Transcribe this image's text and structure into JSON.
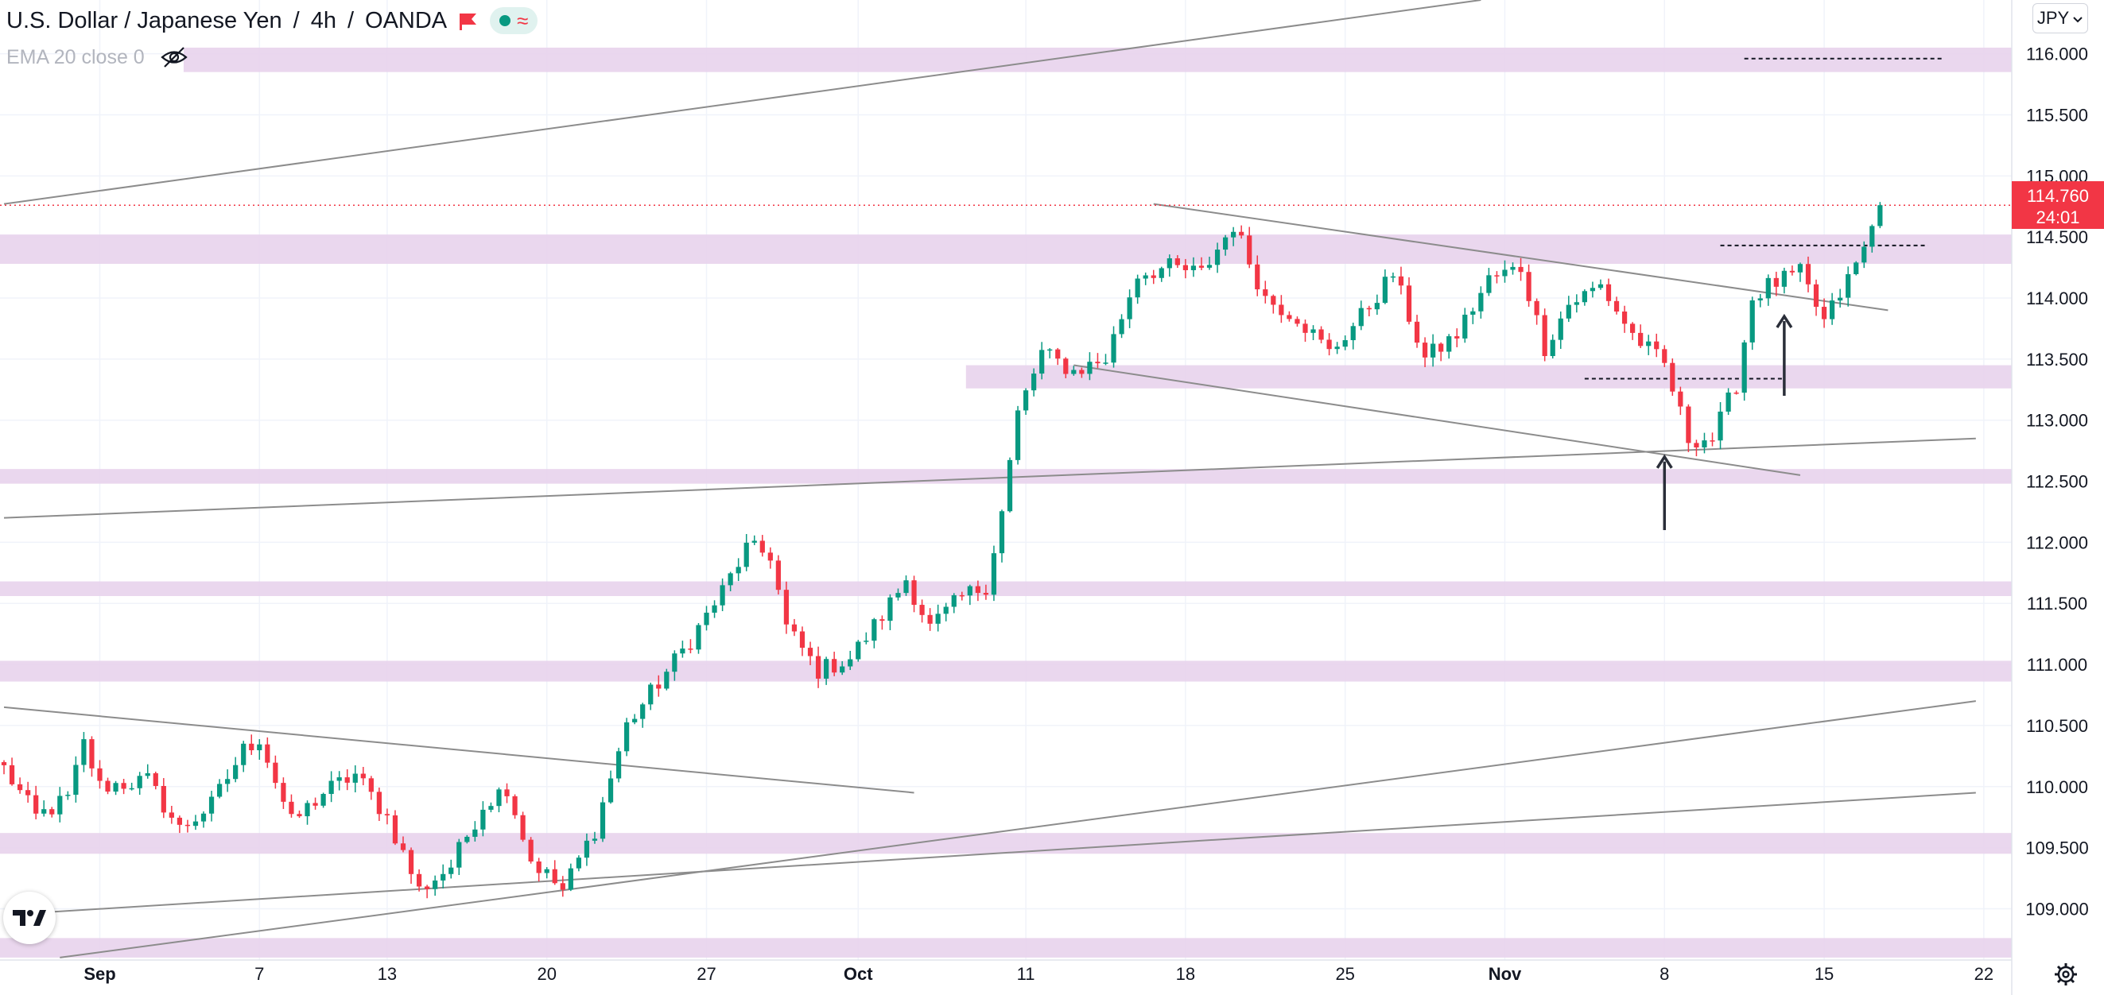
{
  "header": {
    "title": "U.S. Dollar / Japanese Yen",
    "interval": "4h",
    "broker": "OANDA",
    "indicator": "EMA 20 close 0",
    "currency": "JPY"
  },
  "price_label": {
    "value": "114.760",
    "countdown": "24:01"
  },
  "colors": {
    "up": "#089981",
    "down": "#f23645",
    "zone": "#e8d3ec",
    "trendline": "#8c8c8c",
    "last_price": "#f23645",
    "annotation": "#2a2e39"
  },
  "icons": [
    "flag-icon",
    "market-status-icon",
    "eye-off-icon",
    "chevron-down-icon",
    "tradingview-logo",
    "gear-icon"
  ],
  "chart_data": {
    "type": "candlestick",
    "symbol": "USDJPY",
    "y_ticks": [
      116.0,
      115.5,
      115.0,
      114.5,
      114.0,
      113.5,
      113.0,
      112.5,
      112.0,
      111.5,
      111.0,
      110.5,
      110.0,
      109.5,
      109.0
    ],
    "y_tick_labels": [
      "116.000",
      "115.500",
      "115.000",
      "114.500",
      "114.000",
      "113.500",
      "113.000",
      "112.500",
      "112.000",
      "111.500",
      "111.000",
      "110.500",
      "110.000",
      "109.500",
      "109.000"
    ],
    "ylim": [
      108.58,
      116.44
    ],
    "x_ticks": [
      {
        "label": "Sep",
        "bar": 12
      },
      {
        "label": "7",
        "bar": 32
      },
      {
        "label": "13",
        "bar": 48
      },
      {
        "label": "20",
        "bar": 68
      },
      {
        "label": "27",
        "bar": 88
      },
      {
        "label": "Oct",
        "bar": 107
      },
      {
        "label": "11",
        "bar": 128
      },
      {
        "label": "18",
        "bar": 148
      },
      {
        "label": "25",
        "bar": 168
      },
      {
        "label": "Nov",
        "bar": 188
      },
      {
        "label": "8",
        "bar": 208
      },
      {
        "label": "15",
        "bar": 228
      },
      {
        "label": "22",
        "bar": 248
      }
    ],
    "bars_total": 252,
    "last_price": 114.76,
    "anchors": [
      {
        "bar": 0,
        "price": 110.15
      },
      {
        "bar": 4,
        "price": 109.75
      },
      {
        "bar": 8,
        "price": 109.9
      },
      {
        "bar": 10,
        "price": 110.35
      },
      {
        "bar": 12,
        "price": 110.0
      },
      {
        "bar": 18,
        "price": 110.05
      },
      {
        "bar": 22,
        "price": 109.65
      },
      {
        "bar": 26,
        "price": 109.85
      },
      {
        "bar": 30,
        "price": 110.3
      },
      {
        "bar": 32,
        "price": 110.4
      },
      {
        "bar": 36,
        "price": 109.7
      },
      {
        "bar": 40,
        "price": 109.95
      },
      {
        "bar": 44,
        "price": 110.1
      },
      {
        "bar": 48,
        "price": 109.75
      },
      {
        "bar": 52,
        "price": 109.15
      },
      {
        "bar": 56,
        "price": 109.35
      },
      {
        "bar": 60,
        "price": 109.85
      },
      {
        "bar": 63,
        "price": 110.0
      },
      {
        "bar": 66,
        "price": 109.4
      },
      {
        "bar": 70,
        "price": 109.15
      },
      {
        "bar": 74,
        "price": 109.65
      },
      {
        "bar": 78,
        "price": 110.5
      },
      {
        "bar": 82,
        "price": 110.85
      },
      {
        "bar": 86,
        "price": 111.2
      },
      {
        "bar": 90,
        "price": 111.6
      },
      {
        "bar": 93,
        "price": 111.95
      },
      {
        "bar": 96,
        "price": 111.9
      },
      {
        "bar": 98,
        "price": 111.3
      },
      {
        "bar": 102,
        "price": 110.95
      },
      {
        "bar": 106,
        "price": 111.05
      },
      {
        "bar": 110,
        "price": 111.4
      },
      {
        "bar": 113,
        "price": 111.7
      },
      {
        "bar": 116,
        "price": 111.3
      },
      {
        "bar": 120,
        "price": 111.55
      },
      {
        "bar": 123,
        "price": 111.65
      },
      {
        "bar": 125,
        "price": 112.25
      },
      {
        "bar": 127,
        "price": 113.05
      },
      {
        "bar": 130,
        "price": 113.55
      },
      {
        "bar": 134,
        "price": 113.4
      },
      {
        "bar": 138,
        "price": 113.5
      },
      {
        "bar": 142,
        "price": 114.2
      },
      {
        "bar": 146,
        "price": 114.25
      },
      {
        "bar": 150,
        "price": 114.2
      },
      {
        "bar": 154,
        "price": 114.6
      },
      {
        "bar": 158,
        "price": 114.0
      },
      {
        "bar": 162,
        "price": 113.85
      },
      {
        "bar": 166,
        "price": 113.55
      },
      {
        "bar": 170,
        "price": 113.85
      },
      {
        "bar": 174,
        "price": 114.2
      },
      {
        "bar": 178,
        "price": 113.5
      },
      {
        "bar": 182,
        "price": 113.7
      },
      {
        "bar": 186,
        "price": 114.15
      },
      {
        "bar": 190,
        "price": 114.25
      },
      {
        "bar": 193,
        "price": 113.6
      },
      {
        "bar": 196,
        "price": 113.95
      },
      {
        "bar": 200,
        "price": 114.1
      },
      {
        "bar": 204,
        "price": 113.7
      },
      {
        "bar": 208,
        "price": 113.45
      },
      {
        "bar": 211,
        "price": 112.85
      },
      {
        "bar": 214,
        "price": 112.85
      },
      {
        "bar": 217,
        "price": 113.3
      },
      {
        "bar": 219,
        "price": 114.0
      },
      {
        "bar": 221,
        "price": 114.1
      },
      {
        "bar": 225,
        "price": 114.2
      },
      {
        "bar": 228,
        "price": 113.8
      },
      {
        "bar": 231,
        "price": 114.15
      },
      {
        "bar": 233,
        "price": 114.4
      },
      {
        "bar": 235,
        "price": 114.76
      }
    ],
    "zones": [
      {
        "from": 115.85,
        "to": 116.05,
        "start_bar": 23
      },
      {
        "from": 114.28,
        "to": 114.52,
        "start_bar": 0
      },
      {
        "from": 113.26,
        "to": 113.45,
        "start_bar": 121
      },
      {
        "from": 112.48,
        "to": 112.6,
        "start_bar": 0
      },
      {
        "from": 111.56,
        "to": 111.68,
        "start_bar": 0
      },
      {
        "from": 110.86,
        "to": 111.03,
        "start_bar": 0
      },
      {
        "from": 109.45,
        "to": 109.62,
        "start_bar": 0
      },
      {
        "from": 108.6,
        "to": 108.76,
        "start_bar": 0
      }
    ],
    "trendlines": [
      {
        "bar1": 0,
        "price1": 114.77,
        "bar2": 185,
        "price2": 116.44
      },
      {
        "bar1": 0,
        "price1": 112.2,
        "bar2": 247,
        "price2": 112.85
      },
      {
        "bar1": 0,
        "price1": 110.65,
        "bar2": 114,
        "price2": 109.95
      },
      {
        "bar1": 144,
        "price1": 114.77,
        "bar2": 236,
        "price2": 113.9
      },
      {
        "bar1": 134,
        "price1": 113.45,
        "bar2": 225,
        "price2": 112.55
      },
      {
        "bar1": 0,
        "price1": 108.95,
        "bar2": 247,
        "price2": 109.95
      },
      {
        "bar1": 7,
        "price1": 108.6,
        "bar2": 247,
        "price2": 110.7
      }
    ],
    "dashed_levels": [
      {
        "price": 115.96,
        "bar1": 218,
        "bar2": 243
      },
      {
        "price": 114.43,
        "bar1": 215,
        "bar2": 241
      },
      {
        "price": 113.34,
        "bar1": 198,
        "bar2": 223
      }
    ],
    "arrows": [
      {
        "bar": 208,
        "price_from": 112.1,
        "price_to": 112.7
      },
      {
        "bar": 223,
        "price_from": 113.2,
        "price_to": 113.85
      }
    ]
  }
}
